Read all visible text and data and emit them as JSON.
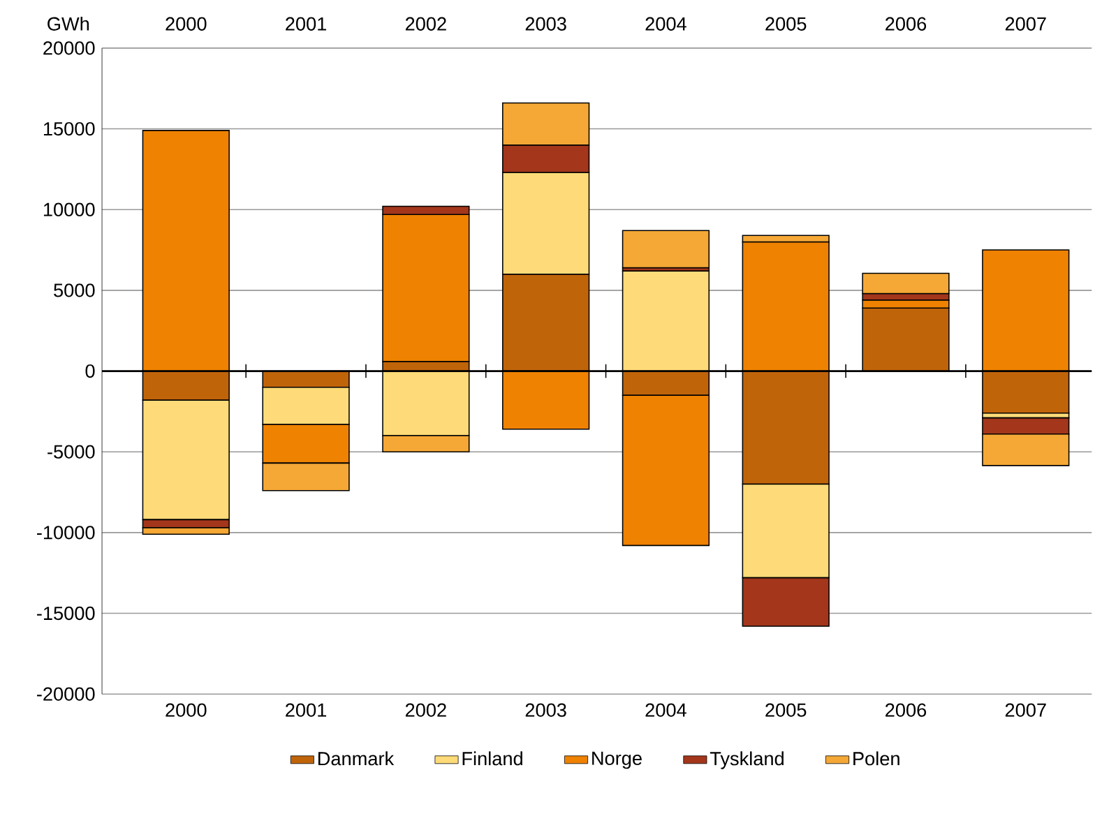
{
  "chart_data": {
    "type": "bar",
    "stacked": true,
    "ylabel": "GWh",
    "categories": [
      "2000",
      "2001",
      "2002",
      "2003",
      "2004",
      "2005",
      "2006",
      "2007"
    ],
    "series": [
      {
        "name": "Danmark",
        "color": "#c0640a",
        "values": [
          -1800,
          -1000,
          600,
          6000,
          -1500,
          -7000,
          3900,
          -2600
        ]
      },
      {
        "name": "Finland",
        "color": "#fedb78",
        "values": [
          -7400,
          -2300,
          -4000,
          6300,
          6200,
          -5800,
          null,
          -300
        ]
      },
      {
        "name": "Norge",
        "color": "#ef8200",
        "values": [
          14900,
          -2400,
          9100,
          -3600,
          -9300,
          8000,
          500,
          7500
        ]
      },
      {
        "name": "Tyskland",
        "color": "#a3361b",
        "values": [
          -500,
          null,
          500,
          1700,
          200,
          -3000,
          400,
          -1000
        ]
      },
      {
        "name": "Polen",
        "color": "#f5a836",
        "values": [
          -400,
          -1700,
          -1000,
          2600,
          2300,
          400,
          1250,
          -1950
        ]
      }
    ],
    "ylim": [
      -20000,
      20000
    ],
    "yticks": [
      -20000,
      -15000,
      -10000,
      -5000,
      0,
      5000,
      10000,
      15000,
      20000
    ],
    "grid": "y",
    "legend": "bottom"
  }
}
